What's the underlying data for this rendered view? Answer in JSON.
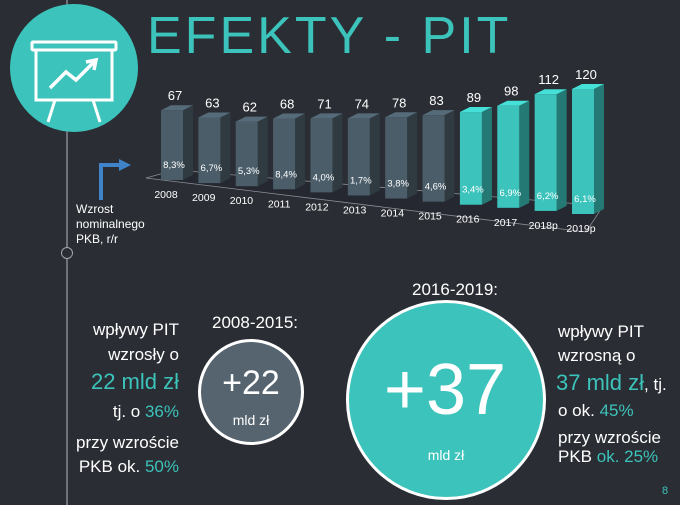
{
  "title": "EFEKTY - PIT",
  "colors": {
    "teal": "#3cc3bb",
    "bar_dark": "#4b5d69",
    "background": "#2a2d33"
  },
  "icon": "presentation-board-chart-icon",
  "gdp_label": [
    "Wzrost",
    "nominalnego",
    "PKB, r/r"
  ],
  "chart_data": {
    "type": "bar",
    "categories": [
      "2008",
      "2009",
      "2010",
      "2011",
      "2012",
      "2013",
      "2014",
      "2015",
      "2016",
      "2017",
      "2018p",
      "2019p"
    ],
    "values": [
      67,
      63,
      62,
      68,
      71,
      74,
      78,
      83,
      89,
      98,
      112,
      120
    ],
    "value_labels": [
      "67",
      "63",
      "62",
      "68",
      "71",
      "74",
      "78",
      "83",
      "89",
      "98",
      "112",
      "120"
    ],
    "gdp_growth": [
      "8,3%",
      "6,7%",
      "5,3%",
      "8,4%",
      "4,0%",
      "1,7%",
      "3,8%",
      "4,6%",
      "3,4%",
      "6,9%",
      "6,2%",
      "6,1%"
    ],
    "highlight_from_index": 8,
    "title": "",
    "xlabel": "",
    "ylabel": "",
    "ylim": [
      0,
      120
    ]
  },
  "left": {
    "period": "2008-2015:",
    "line1": "wpływy PIT",
    "line2": "wzrosły o",
    "amount": "22 mld zł",
    "pct_prefix": "tj. o ",
    "pct_value": "36%",
    "line5": "przy wzroście",
    "pkb_prefix": "PKB ok. ",
    "pkb_value": "50%",
    "circle_plus": "+22",
    "circle_unit": "mld zł"
  },
  "right": {
    "period": "2016-2019:",
    "line1": "wpływy PIT",
    "line2": "wzrosną o",
    "amount": "37 mld zł",
    "amount_suffix": ", tj.",
    "pct_prefix": "o ok. ",
    "pct_value": "45%",
    "line5": "przy wzroście",
    "pkb_prefix": "PKB ",
    "pkb_value": "ok. 25%",
    "circle_plus": "+37",
    "circle_unit": "mld zł"
  },
  "page_number": "8"
}
